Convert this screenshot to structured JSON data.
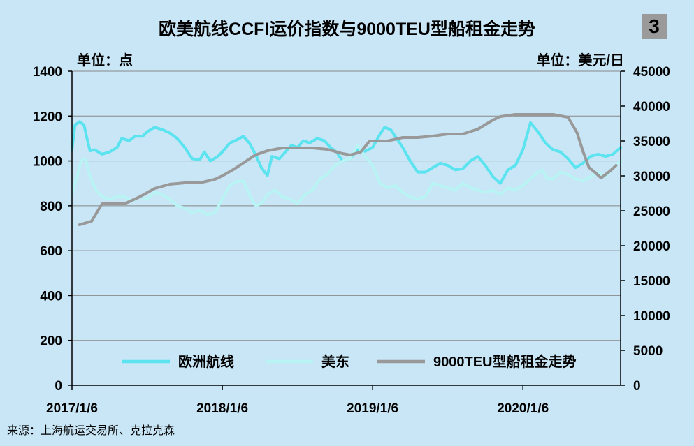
{
  "badge": "3",
  "chart_data": {
    "type": "line",
    "title": "欧美航线CCFI运价指数与9000TEU型船租金走势",
    "left_unit": "单位：点",
    "right_unit": "单位：美元/日",
    "source": "来源：上海航运交易所、克拉克森",
    "y_left": {
      "min": 0,
      "max": 1400,
      "ticks": [
        0,
        200,
        400,
        600,
        800,
        1000,
        1200,
        1400
      ]
    },
    "y_right": {
      "min": 0,
      "max": 45000,
      "ticks": [
        0,
        5000,
        10000,
        15000,
        20000,
        25000,
        30000,
        35000,
        40000,
        45000
      ]
    },
    "x_ticks": [
      "2017/1/6",
      "2018/1/6",
      "2019/1/6",
      "2020/1/6"
    ],
    "x_range": [
      2017.0,
      2020.65
    ],
    "grid": true,
    "legend_position": "bottom-right",
    "series": [
      {
        "name": "欧洲航线",
        "axis": "left",
        "color": "#5be3ef",
        "points": [
          [
            2017.0,
            1050
          ],
          [
            2017.02,
            1160
          ],
          [
            2017.05,
            1175
          ],
          [
            2017.08,
            1160
          ],
          [
            2017.1,
            1100
          ],
          [
            2017.12,
            1045
          ],
          [
            2017.15,
            1050
          ],
          [
            2017.2,
            1030
          ],
          [
            2017.25,
            1040
          ],
          [
            2017.3,
            1060
          ],
          [
            2017.33,
            1100
          ],
          [
            2017.38,
            1090
          ],
          [
            2017.42,
            1110
          ],
          [
            2017.47,
            1110
          ],
          [
            2017.5,
            1130
          ],
          [
            2017.55,
            1150
          ],
          [
            2017.6,
            1140
          ],
          [
            2017.65,
            1125
          ],
          [
            2017.7,
            1100
          ],
          [
            2017.75,
            1060
          ],
          [
            2017.8,
            1010
          ],
          [
            2017.85,
            1005
          ],
          [
            2017.88,
            1040
          ],
          [
            2017.92,
            1000
          ],
          [
            2017.97,
            1020
          ],
          [
            2018.0,
            1040
          ],
          [
            2018.05,
            1080
          ],
          [
            2018.1,
            1095
          ],
          [
            2018.14,
            1110
          ],
          [
            2018.18,
            1080
          ],
          [
            2018.22,
            1030
          ],
          [
            2018.26,
            970
          ],
          [
            2018.3,
            935
          ],
          [
            2018.33,
            1020
          ],
          [
            2018.38,
            1010
          ],
          [
            2018.42,
            1040
          ],
          [
            2018.46,
            1070
          ],
          [
            2018.5,
            1060
          ],
          [
            2018.54,
            1090
          ],
          [
            2018.58,
            1080
          ],
          [
            2018.63,
            1100
          ],
          [
            2018.68,
            1090
          ],
          [
            2018.72,
            1060
          ],
          [
            2018.76,
            1040
          ],
          [
            2018.8,
            1000
          ],
          [
            2018.85,
            1010
          ],
          [
            2018.9,
            1050
          ],
          [
            2018.94,
            1040
          ],
          [
            2019.0,
            1060
          ],
          [
            2019.05,
            1120
          ],
          [
            2019.08,
            1150
          ],
          [
            2019.12,
            1140
          ],
          [
            2019.15,
            1110
          ],
          [
            2019.2,
            1060
          ],
          [
            2019.25,
            1000
          ],
          [
            2019.3,
            950
          ],
          [
            2019.35,
            950
          ],
          [
            2019.4,
            970
          ],
          [
            2019.45,
            990
          ],
          [
            2019.5,
            980
          ],
          [
            2019.55,
            960
          ],
          [
            2019.6,
            965
          ],
          [
            2019.65,
            1000
          ],
          [
            2019.7,
            1020
          ],
          [
            2019.75,
            980
          ],
          [
            2019.8,
            930
          ],
          [
            2019.85,
            900
          ],
          [
            2019.9,
            960
          ],
          [
            2019.95,
            980
          ],
          [
            2020.0,
            1050
          ],
          [
            2020.05,
            1170
          ],
          [
            2020.1,
            1130
          ],
          [
            2020.15,
            1080
          ],
          [
            2020.2,
            1050
          ],
          [
            2020.25,
            1040
          ],
          [
            2020.3,
            1010
          ],
          [
            2020.35,
            970
          ],
          [
            2020.4,
            990
          ],
          [
            2020.45,
            1020
          ],
          [
            2020.5,
            1030
          ],
          [
            2020.55,
            1020
          ],
          [
            2020.6,
            1030
          ],
          [
            2020.65,
            1060
          ]
        ]
      },
      {
        "name": "美东",
        "axis": "left",
        "color": "#b8f4f4",
        "points": [
          [
            2017.0,
            850
          ],
          [
            2017.03,
            920
          ],
          [
            2017.06,
            1000
          ],
          [
            2017.09,
            1010
          ],
          [
            2017.12,
            930
          ],
          [
            2017.16,
            870
          ],
          [
            2017.2,
            840
          ],
          [
            2017.25,
            830
          ],
          [
            2017.3,
            840
          ],
          [
            2017.35,
            840
          ],
          [
            2017.4,
            820
          ],
          [
            2017.45,
            840
          ],
          [
            2017.5,
            830
          ],
          [
            2017.55,
            860
          ],
          [
            2017.6,
            850
          ],
          [
            2017.65,
            830
          ],
          [
            2017.7,
            800
          ],
          [
            2017.75,
            790
          ],
          [
            2017.8,
            770
          ],
          [
            2017.85,
            780
          ],
          [
            2017.9,
            760
          ],
          [
            2017.95,
            770
          ],
          [
            2018.0,
            830
          ],
          [
            2018.05,
            890
          ],
          [
            2018.1,
            910
          ],
          [
            2018.14,
            910
          ],
          [
            2018.18,
            850
          ],
          [
            2018.22,
            800
          ],
          [
            2018.26,
            810
          ],
          [
            2018.3,
            850
          ],
          [
            2018.35,
            870
          ],
          [
            2018.4,
            840
          ],
          [
            2018.45,
            830
          ],
          [
            2018.5,
            810
          ],
          [
            2018.55,
            850
          ],
          [
            2018.6,
            870
          ],
          [
            2018.65,
            920
          ],
          [
            2018.7,
            940
          ],
          [
            2018.75,
            980
          ],
          [
            2018.8,
            1000
          ],
          [
            2018.85,
            1010
          ],
          [
            2018.9,
            1070
          ],
          [
            2018.95,
            1020
          ],
          [
            2019.0,
            980
          ],
          [
            2019.05,
            900
          ],
          [
            2019.1,
            880
          ],
          [
            2019.15,
            890
          ],
          [
            2019.2,
            860
          ],
          [
            2019.25,
            840
          ],
          [
            2019.3,
            830
          ],
          [
            2019.35,
            840
          ],
          [
            2019.4,
            900
          ],
          [
            2019.45,
            890
          ],
          [
            2019.5,
            880
          ],
          [
            2019.55,
            870
          ],
          [
            2019.6,
            900
          ],
          [
            2019.65,
            880
          ],
          [
            2019.7,
            870
          ],
          [
            2019.75,
            860
          ],
          [
            2019.8,
            870
          ],
          [
            2019.85,
            850
          ],
          [
            2019.9,
            880
          ],
          [
            2019.95,
            870
          ],
          [
            2020.0,
            890
          ],
          [
            2020.05,
            920
          ],
          [
            2020.1,
            950
          ],
          [
            2020.13,
            960
          ],
          [
            2020.16,
            920
          ],
          [
            2020.2,
            920
          ],
          [
            2020.25,
            950
          ],
          [
            2020.3,
            940
          ],
          [
            2020.35,
            920
          ],
          [
            2020.4,
            910
          ],
          [
            2020.45,
            930
          ],
          [
            2020.5,
            950
          ],
          [
            2020.55,
            930
          ],
          [
            2020.6,
            970
          ],
          [
            2020.65,
            1000
          ]
        ]
      },
      {
        "name": "9000TEU型船租金走势",
        "axis": "right",
        "color": "#999999",
        "points": [
          [
            2017.05,
            23000
          ],
          [
            2017.13,
            23500
          ],
          [
            2017.2,
            26000
          ],
          [
            2017.35,
            26000
          ],
          [
            2017.45,
            27000
          ],
          [
            2017.55,
            28200
          ],
          [
            2017.65,
            28800
          ],
          [
            2017.75,
            29000
          ],
          [
            2017.85,
            29000
          ],
          [
            2017.95,
            29500
          ],
          [
            2018.0,
            30000
          ],
          [
            2018.08,
            31000
          ],
          [
            2018.15,
            32000
          ],
          [
            2018.22,
            33000
          ],
          [
            2018.3,
            33600
          ],
          [
            2018.4,
            34000
          ],
          [
            2018.5,
            34000
          ],
          [
            2018.6,
            34000
          ],
          [
            2018.7,
            33800
          ],
          [
            2018.8,
            33200
          ],
          [
            2018.85,
            33000
          ],
          [
            2018.92,
            33400
          ],
          [
            2018.98,
            35000
          ],
          [
            2019.1,
            35000
          ],
          [
            2019.2,
            35500
          ],
          [
            2019.3,
            35500
          ],
          [
            2019.4,
            35700
          ],
          [
            2019.5,
            36000
          ],
          [
            2019.6,
            36000
          ],
          [
            2019.7,
            36700
          ],
          [
            2019.8,
            38000
          ],
          [
            2019.85,
            38500
          ],
          [
            2019.95,
            38800
          ],
          [
            2020.05,
            38800
          ],
          [
            2020.15,
            38800
          ],
          [
            2020.2,
            38800
          ],
          [
            2020.3,
            38400
          ],
          [
            2020.36,
            36200
          ],
          [
            2020.4,
            33500
          ],
          [
            2020.44,
            31200
          ],
          [
            2020.48,
            30500
          ],
          [
            2020.52,
            29700
          ],
          [
            2020.58,
            30700
          ],
          [
            2020.62,
            31500
          ]
        ]
      }
    ]
  }
}
